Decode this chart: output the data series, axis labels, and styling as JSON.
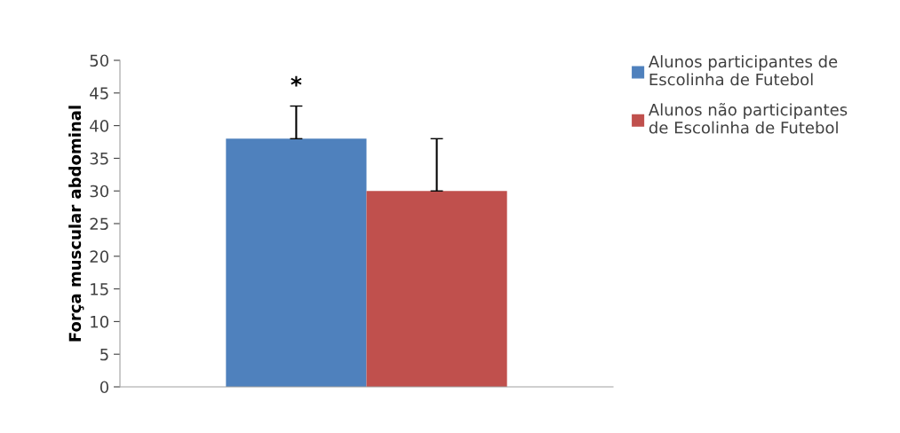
{
  "chart_data": {
    "type": "bar",
    "ylabel": "Força muscular abdominal",
    "categories": [
      null
    ],
    "series": [
      {
        "name": "Alunos participantes de\nEscolinha de Futebol",
        "color": "#4f81bd",
        "values": [
          38
        ],
        "errors": [
          [
            38,
            43
          ]
        ]
      },
      {
        "name": "Alunos não participantes\nde Escolinha de Futebol",
        "color": "#c0504d",
        "values": [
          30
        ],
        "errors": [
          [
            30,
            38
          ]
        ]
      }
    ],
    "ylim": [
      0,
      50
    ],
    "yticks": [
      0,
      5,
      10,
      15,
      20,
      25,
      30,
      35,
      40,
      45,
      50
    ],
    "grid": false,
    "legend": "top right",
    "annotations": [
      "*"
    ]
  }
}
